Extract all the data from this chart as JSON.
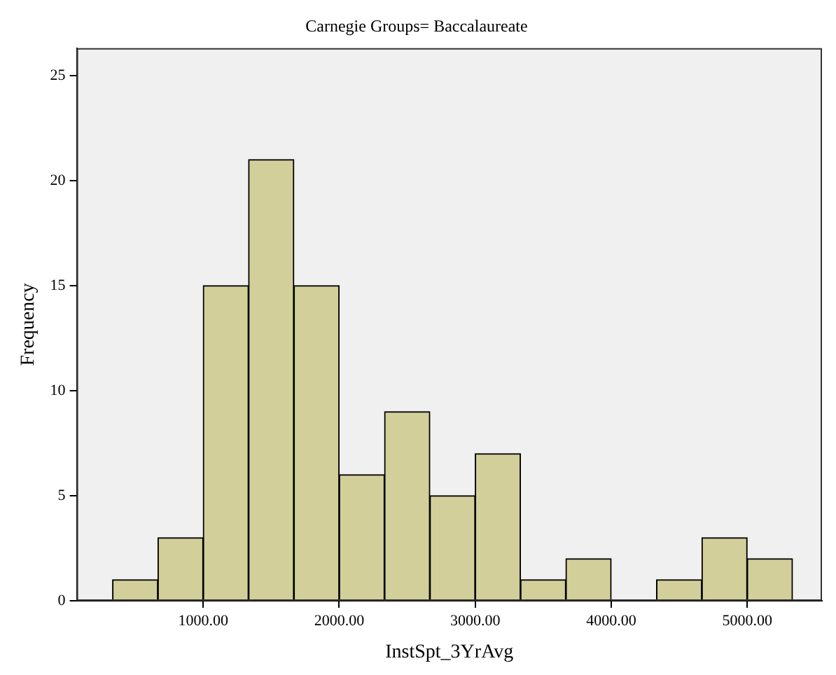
{
  "chart_data": {
    "type": "histogram",
    "title": "Carnegie Groups= Baccalaureate",
    "xlabel": "InstSpt_3YrAvg",
    "ylabel": "Frequency",
    "bins": [
      333.33,
      666.67,
      1000,
      1333.33,
      1666.67,
      2000,
      2333.33,
      2666.67,
      3000,
      3333.33,
      3666.67,
      4000,
      4333.33,
      4666.67,
      5000,
      5333.33
    ],
    "values": [
      1,
      3,
      15,
      21,
      15,
      6,
      9,
      5,
      7,
      1,
      2,
      0,
      1,
      3,
      2
    ],
    "color": "#d3cf9b",
    "xlim": [
      70,
      5550
    ],
    "ylim": [
      0,
      26.3
    ],
    "xticks": [
      {
        "value": 1000,
        "label": "1000.00"
      },
      {
        "value": 2000,
        "label": "2000.00"
      },
      {
        "value": 3000,
        "label": "3000.00"
      },
      {
        "value": 4000,
        "label": "4000.00"
      },
      {
        "value": 5000,
        "label": "5000.00"
      }
    ],
    "yticks": [
      0,
      5,
      10,
      15,
      20,
      25
    ],
    "grid": false,
    "legend": false
  }
}
